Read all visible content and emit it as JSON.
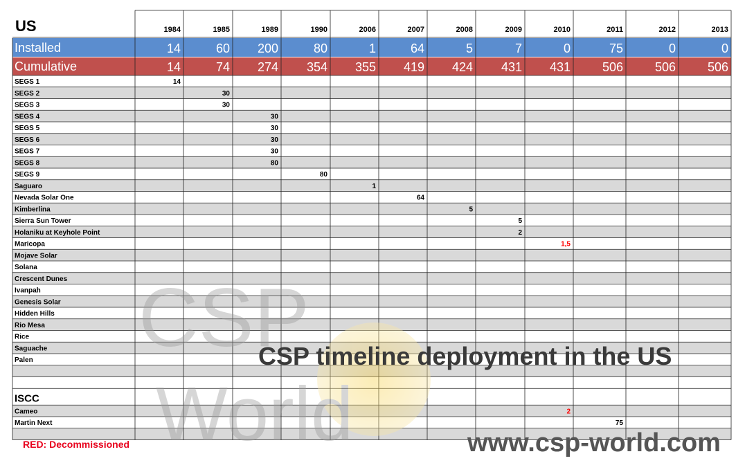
{
  "header": {
    "title": "US",
    "years": [
      1984,
      1985,
      1989,
      1990,
      2006,
      2007,
      2008,
      2009,
      2010,
      2011,
      2012,
      2013
    ]
  },
  "installed": {
    "label": "Installed",
    "values": [
      14,
      60,
      200,
      80,
      1,
      64,
      5,
      7,
      0,
      75,
      0,
      0
    ]
  },
  "cumulative": {
    "label": "Cumulative",
    "values": [
      14,
      74,
      274,
      354,
      355,
      419,
      424,
      431,
      431,
      506,
      506,
      506
    ]
  },
  "plants": [
    {
      "name": "SEGS 1",
      "cells": [
        14,
        null,
        null,
        null,
        null,
        null,
        null,
        null,
        null,
        null,
        null,
        null
      ]
    },
    {
      "name": "SEGS 2",
      "cells": [
        null,
        30,
        null,
        null,
        null,
        null,
        null,
        null,
        null,
        null,
        null,
        null
      ]
    },
    {
      "name": "SEGS 3",
      "cells": [
        null,
        30,
        null,
        null,
        null,
        null,
        null,
        null,
        null,
        null,
        null,
        null
      ]
    },
    {
      "name": "SEGS 4",
      "cells": [
        null,
        null,
        30,
        null,
        null,
        null,
        null,
        null,
        null,
        null,
        null,
        null
      ]
    },
    {
      "name": "SEGS 5",
      "cells": [
        null,
        null,
        30,
        null,
        null,
        null,
        null,
        null,
        null,
        null,
        null,
        null
      ]
    },
    {
      "name": "SEGS 6",
      "cells": [
        null,
        null,
        30,
        null,
        null,
        null,
        null,
        null,
        null,
        null,
        null,
        null
      ]
    },
    {
      "name": "SEGS 7",
      "cells": [
        null,
        null,
        30,
        null,
        null,
        null,
        null,
        null,
        null,
        null,
        null,
        null
      ]
    },
    {
      "name": "SEGS 8",
      "cells": [
        null,
        null,
        80,
        null,
        null,
        null,
        null,
        null,
        null,
        null,
        null,
        null
      ]
    },
    {
      "name": "SEGS 9",
      "cells": [
        null,
        null,
        null,
        80,
        null,
        null,
        null,
        null,
        null,
        null,
        null,
        null
      ]
    },
    {
      "name": "Saguaro",
      "cells": [
        null,
        null,
        null,
        null,
        1,
        null,
        null,
        null,
        null,
        null,
        null,
        null
      ]
    },
    {
      "name": "Nevada Solar One",
      "cells": [
        null,
        null,
        null,
        null,
        null,
        64,
        null,
        null,
        null,
        null,
        null,
        null
      ]
    },
    {
      "name": "Kimberlina",
      "cells": [
        null,
        null,
        null,
        null,
        null,
        null,
        5,
        null,
        null,
        null,
        null,
        null
      ]
    },
    {
      "name": "Sierra Sun Tower",
      "cells": [
        null,
        null,
        null,
        null,
        null,
        null,
        null,
        5,
        null,
        null,
        null,
        null
      ]
    },
    {
      "name": "Holaniku at Keyhole Point",
      "cells": [
        null,
        null,
        null,
        null,
        null,
        null,
        null,
        2,
        null,
        null,
        null,
        null
      ]
    },
    {
      "name": "Maricopa",
      "cells": [
        null,
        null,
        null,
        null,
        null,
        null,
        null,
        null,
        "1,5",
        null,
        null,
        null
      ],
      "color": "#ff0000"
    },
    {
      "name": "Mojave Solar",
      "cells": [
        null,
        null,
        null,
        null,
        null,
        null,
        null,
        null,
        null,
        null,
        null,
        null
      ]
    },
    {
      "name": "Solana",
      "cells": [
        null,
        null,
        null,
        null,
        null,
        null,
        null,
        null,
        null,
        null,
        null,
        null
      ]
    },
    {
      "name": "Crescent Dunes",
      "cells": [
        null,
        null,
        null,
        null,
        null,
        null,
        null,
        null,
        null,
        null,
        null,
        null
      ]
    },
    {
      "name": "Ivanpah",
      "cells": [
        null,
        null,
        null,
        null,
        null,
        null,
        null,
        null,
        null,
        null,
        null,
        null
      ]
    },
    {
      "name": "Genesis Solar",
      "cells": [
        null,
        null,
        null,
        null,
        null,
        null,
        null,
        null,
        null,
        null,
        null,
        null
      ]
    },
    {
      "name": "Hidden Hills",
      "cells": [
        null,
        null,
        null,
        null,
        null,
        null,
        null,
        null,
        null,
        null,
        null,
        null
      ]
    },
    {
      "name": "Rio Mesa",
      "cells": [
        null,
        null,
        null,
        null,
        null,
        null,
        null,
        null,
        null,
        null,
        null,
        null
      ]
    },
    {
      "name": "Rice",
      "cells": [
        null,
        null,
        null,
        null,
        null,
        null,
        null,
        null,
        null,
        null,
        null,
        null
      ]
    },
    {
      "name": "Saguache",
      "cells": [
        null,
        null,
        null,
        null,
        null,
        null,
        null,
        null,
        null,
        null,
        null,
        null
      ]
    },
    {
      "name": "Palen",
      "cells": [
        null,
        null,
        null,
        null,
        null,
        null,
        null,
        null,
        null,
        null,
        null,
        null
      ]
    }
  ],
  "iscc": {
    "title": "ISCC",
    "plants": [
      {
        "name": "Cameo",
        "cells": [
          null,
          null,
          null,
          null,
          null,
          null,
          null,
          null,
          2,
          null,
          null,
          null
        ],
        "color": "#ff0000"
      },
      {
        "name": "Martin Next",
        "cells": [
          null,
          null,
          null,
          null,
          null,
          null,
          null,
          null,
          null,
          75,
          null,
          null
        ]
      }
    ]
  },
  "watermark": {
    "line1": "CSP",
    "line2": "World"
  },
  "overlay_title": "CSP timeline deployment in the US",
  "website": "www.csp-world.com",
  "legend": "RED: Decommissioned"
}
